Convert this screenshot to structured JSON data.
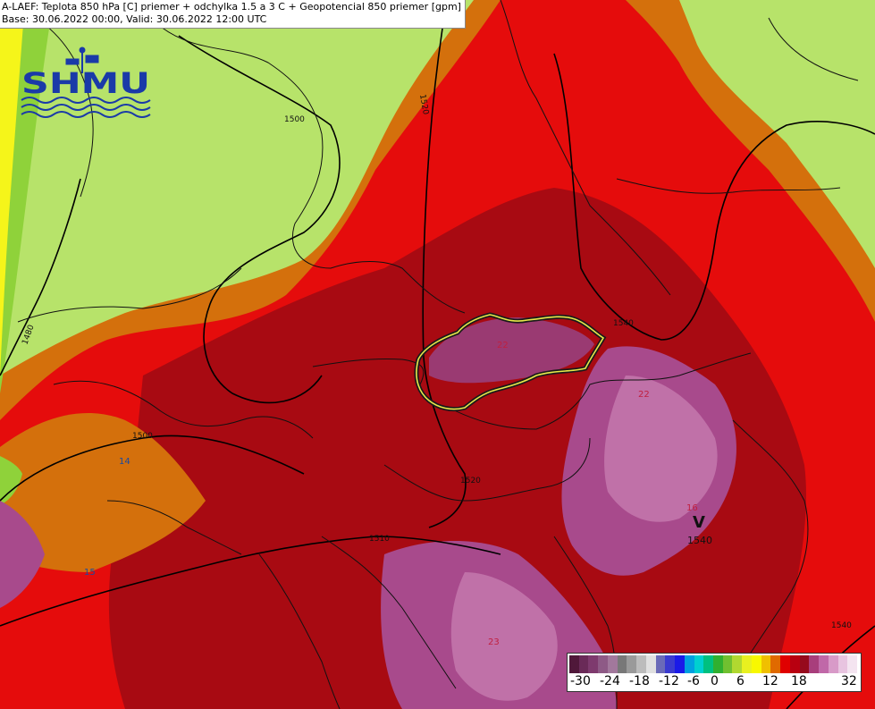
{
  "header": {
    "line1": "A-LAEF: Teplota 850 hPa [C] priemer + odchylka 1.5 a 3 C + Geopotencial 850 priemer [gpm]",
    "line2": "Base: 30.06.2022 00:00, Valid: 30.06.2022 12:00 UTC"
  },
  "logo": {
    "text": "SHMU"
  },
  "contour_labels": [
    "1500",
    "1520",
    "1480",
    "1500",
    "1520",
    "1540",
    "1510",
    "1540"
  ],
  "temperature_labels": [
    "22",
    "22",
    "14",
    "15",
    "16",
    "23"
  ],
  "low_marker": {
    "symbol": "V",
    "value": "1540"
  },
  "legend": {
    "labels": [
      "-30",
      "-24",
      "-18",
      "-12",
      "-6",
      "0",
      "6",
      "12",
      "18",
      "32"
    ],
    "colors": [
      "#50183a",
      "#6a2a58",
      "#7e3a6e",
      "#8e5a86",
      "#a2789c",
      "#787878",
      "#9a9a9a",
      "#bcbcbc",
      "#e0e0e0",
      "#6a6ab8",
      "#3a3ad0",
      "#1a1ae8",
      "#00a0e0",
      "#00d0d0",
      "#00c080",
      "#30b030",
      "#70c030",
      "#b0d830",
      "#e8f020",
      "#f8f800",
      "#f0c000",
      "#e06a00",
      "#e00000",
      "#b80010",
      "#960a1c",
      "#a83e7c",
      "#c068a8",
      "#d89ac8",
      "#e8c4e0",
      "#f4e4f0"
    ]
  },
  "colors": {
    "lightgreen": "#b7e36a",
    "green": "#8fd23a",
    "orange": "#d4700c",
    "red": "#e50c0c",
    "darkred": "#a80a12",
    "magenta": "#a84a8c",
    "pink": "#c071a8",
    "yellow": "#f5f51a"
  }
}
